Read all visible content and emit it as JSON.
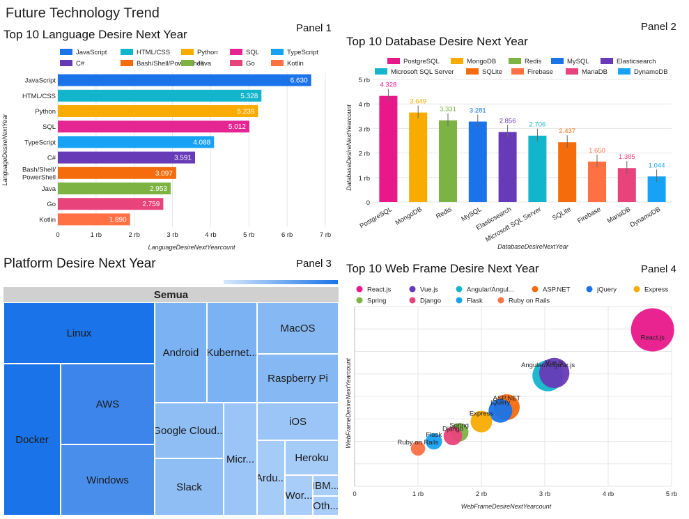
{
  "dashboard_title": "Future Technology Trend",
  "panels": [
    {
      "title": "Top 10 Language Desire Next Year",
      "label": "Panel 1"
    },
    {
      "title": "Top 10 Database Desire Next Year",
      "label": "Panel 2"
    },
    {
      "title": "Platform Desire Next Year",
      "label": "Panel 3"
    },
    {
      "title": "Top 10 Web Frame Desire Next Year",
      "label": "Panel 4"
    }
  ],
  "chart_data": [
    {
      "type": "bar",
      "orientation": "horizontal",
      "categories": [
        "JavaScript",
        "HTML/CSS",
        "Python",
        "SQL",
        "TypeScript",
        "C#",
        "Bash/Shell/PowerShell",
        "Java",
        "Go",
        "Kotlin"
      ],
      "category_labels": [
        [
          "JavaScript"
        ],
        [
          "HTML/CSS"
        ],
        [
          "Python"
        ],
        [
          "SQL"
        ],
        [
          "TypeScript"
        ],
        [
          "C#"
        ],
        [
          "Bash/Shell/",
          "PowerShell"
        ],
        [
          "Java"
        ],
        [
          "Go"
        ],
        [
          "Kotlin"
        ]
      ],
      "values": [
        6630,
        5328,
        5239,
        5012,
        4088,
        3591,
        3097,
        2953,
        2759,
        1890
      ],
      "value_labels": [
        "6.630",
        "5.328",
        "5.239",
        "5.012",
        "4.088",
        "3.591",
        "3.097",
        "2.953",
        "2.759",
        "1.890"
      ],
      "colors": [
        "#1a73e8",
        "#12b5cb",
        "#f9ab00",
        "#e52592",
        "#17a2f5",
        "#673ab7",
        "#f56c0c",
        "#7cb342",
        "#e8437a",
        "#ff7043"
      ],
      "xlabel": "LanguageDesireNextYearcount",
      "ylabel": "LanguageDesireNextYear",
      "xlim": [
        0,
        7000
      ],
      "xticks": [
        0,
        1000,
        2000,
        3000,
        4000,
        5000,
        6000,
        7000
      ],
      "xtick_labels": [
        "0",
        "1 rb",
        "2 rb",
        "3 rb",
        "4 rb",
        "5 rb",
        "6 rb",
        "7 rb"
      ],
      "legend_position": "top",
      "grid": true
    },
    {
      "type": "bar",
      "orientation": "vertical",
      "categories": [
        "PostgreSQL",
        "MongoDB",
        "Redis",
        "MySQL",
        "Elasticsearch",
        "Microsoft SQL Server",
        "SQLite",
        "Firebase",
        "MariaDB",
        "DynamoDB"
      ],
      "values": [
        4328,
        3649,
        3331,
        3281,
        2856,
        2706,
        2437,
        1650,
        1385,
        1044
      ],
      "value_labels": [
        "4.328",
        "3.649",
        "3.331",
        "3.281",
        "2.856",
        "2.706",
        "2.437",
        "1.650",
        "1.385",
        "1.044"
      ],
      "colors": [
        "#e8178a",
        "#f9ab00",
        "#7cb342",
        "#1a73e8",
        "#673ab7",
        "#12b5cb",
        "#f56c0c",
        "#ff7043",
        "#e8437a",
        "#17a2f5"
      ],
      "xlabel": "DatabaseDesireNextYear",
      "ylabel": "DatabaseDesireNextYearcount",
      "ylim": [
        0,
        5000
      ],
      "yticks": [
        0,
        1000,
        2000,
        3000,
        4000,
        5000
      ],
      "ytick_labels": [
        "0",
        "1 rb",
        "2 rb",
        "3 rb",
        "4 rb",
        "5 rb"
      ],
      "legend_position": "top",
      "grid": true,
      "error_bars": true
    },
    {
      "type": "treemap",
      "root_label": "Semua",
      "items": [
        "Linux",
        "Docker",
        "AWS",
        "Windows",
        "Android",
        "Kubernet...",
        "MacOS",
        "Raspberry Pi",
        "Google Cloud...",
        "iOS",
        "Slack",
        "Micr...",
        "Ardu...",
        "Heroku",
        "Wor...",
        "IBM...",
        "Oth..."
      ],
      "color_scale": [
        "#a8cdf8",
        "#1a73e8"
      ]
    },
    {
      "type": "scatter",
      "subtype": "bubble",
      "points": [
        {
          "name": "React.js",
          "x": 4700,
          "y": 8700,
          "size": 1.0,
          "color": "#e8178a"
        },
        {
          "name": "Vue.js",
          "x": 3150,
          "y": 6300,
          "size": 0.7,
          "color": "#673ab7"
        },
        {
          "name": "Angular/Angular.js",
          "x": 3050,
          "y": 6150,
          "size": 0.72,
          "color": "#12b5cb"
        },
        {
          "name": "ASP.NET",
          "x": 2400,
          "y": 4400,
          "size": 0.6,
          "color": "#f56c0c"
        },
        {
          "name": "jQuery",
          "x": 2300,
          "y": 4200,
          "size": 0.55,
          "color": "#1a73e8"
        },
        {
          "name": "Express",
          "x": 2000,
          "y": 3600,
          "size": 0.5,
          "color": "#f9ab00"
        },
        {
          "name": "Spring",
          "x": 1650,
          "y": 3000,
          "size": 0.43,
          "color": "#7cb342"
        },
        {
          "name": "Django",
          "x": 1550,
          "y": 2800,
          "size": 0.43,
          "color": "#e8437a"
        },
        {
          "name": "Flask",
          "x": 1250,
          "y": 2500,
          "size": 0.38,
          "color": "#17a2f5"
        },
        {
          "name": "Ruby on Rails",
          "x": 1000,
          "y": 2100,
          "size": 0.33,
          "color": "#ff7043"
        }
      ],
      "legend": [
        "React.js",
        "Vue.js",
        "Angular/Angul...",
        "ASP.NET",
        "jQuery",
        "Express",
        "Spring",
        "Django",
        "Flask",
        "Ruby on Rails"
      ],
      "xlabel": "WebFrameDesireNextYearcount",
      "ylabel": "WebFrameDesireNextYearcount",
      "xlim": [
        0,
        5000
      ],
      "xticks": [
        0,
        1000,
        2000,
        3000,
        4000,
        5000
      ],
      "xtick_labels": [
        "0",
        "1 rb",
        "2 rb",
        "3 rb",
        "4 rb",
        "5 rb"
      ],
      "legend_position": "top",
      "grid": true
    }
  ]
}
